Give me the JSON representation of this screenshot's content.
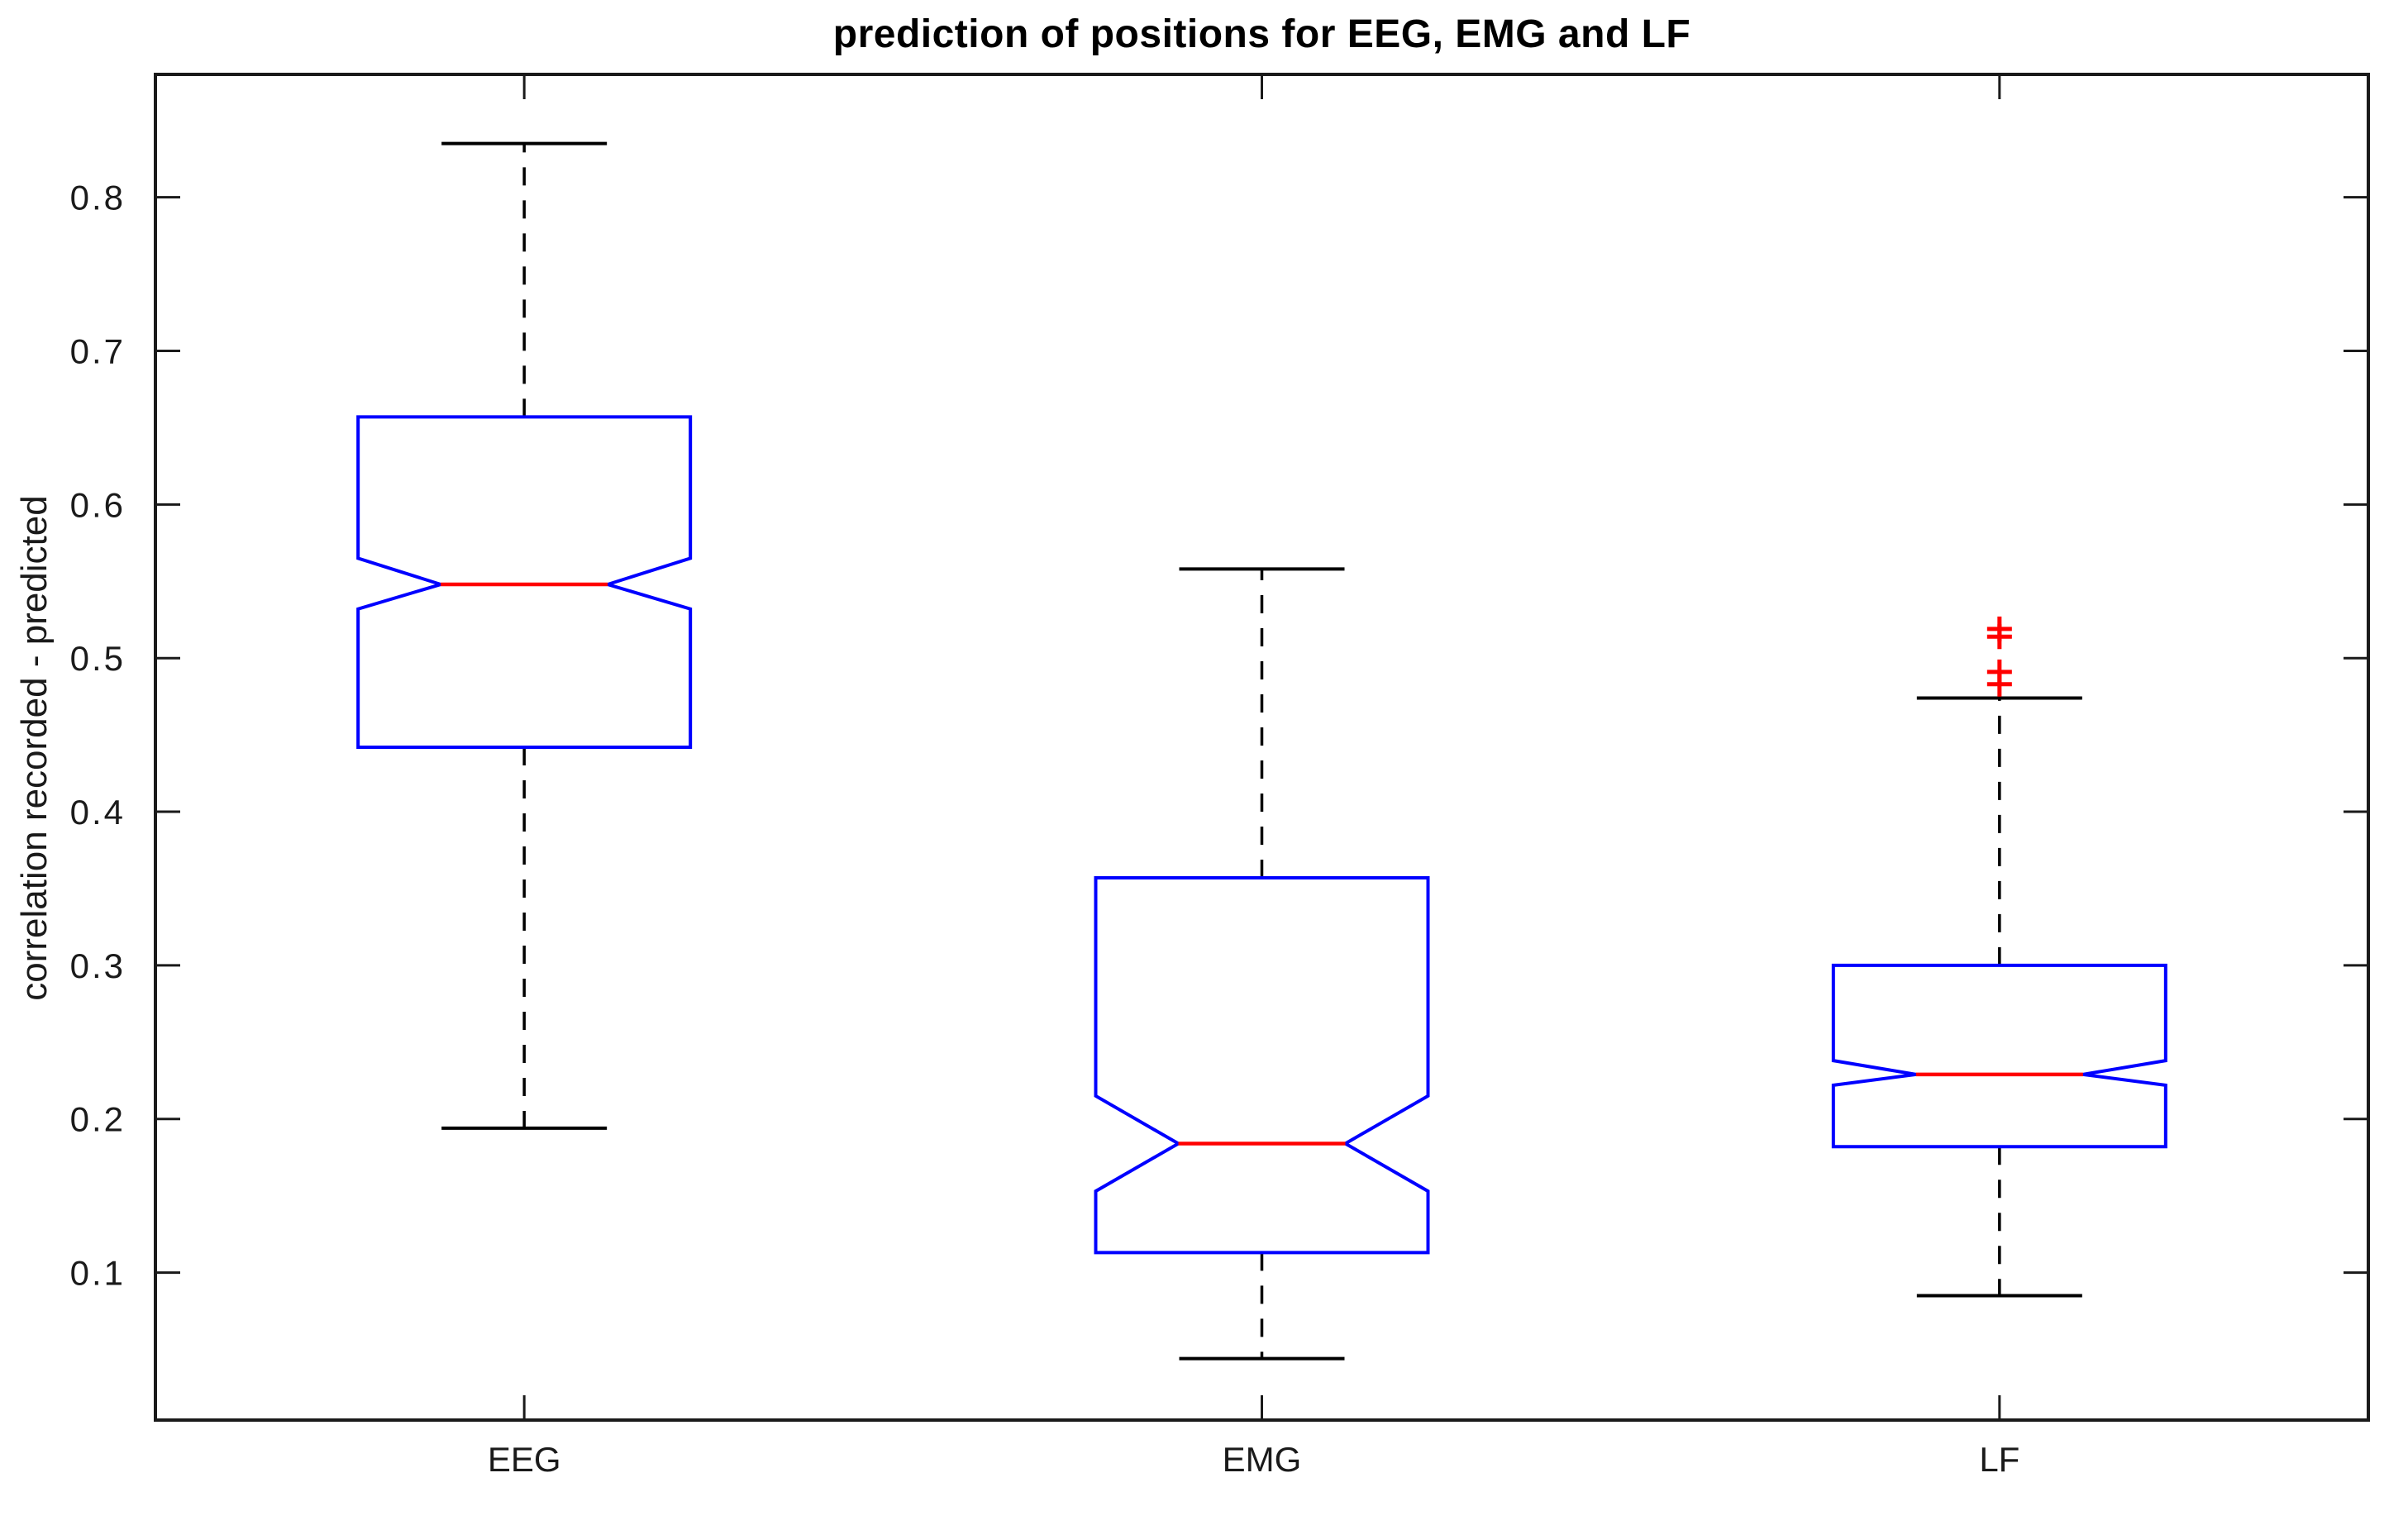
{
  "chart_data": {
    "type": "boxplot",
    "title": "prediction of positions for EEG, EMG and LF",
    "ylabel": "correlation recorded - predicted",
    "xlabel": "",
    "categories": [
      "EEG",
      "EMG",
      "LF"
    ],
    "y_ticks": [
      0.1,
      0.2,
      0.3,
      0.4,
      0.5,
      0.6,
      0.7,
      0.8
    ],
    "y_tick_labels": [
      "0.1",
      "0.2",
      "0.3",
      "0.4",
      "0.5",
      "0.6",
      "0.7",
      "0.8"
    ],
    "ylim": [
      0.004,
      0.88
    ],
    "grid": false,
    "legend": "none",
    "notched": true,
    "colors": {
      "box": "#0000ff",
      "median": "#ff0000",
      "whisker": "#000000",
      "cap": "#000000",
      "outlier": "#ff0000",
      "axis": "#1a1a1a",
      "background": "#ffffff"
    },
    "series": [
      {
        "name": "EEG",
        "whisker_low": 0.194,
        "q1": 0.442,
        "median": 0.548,
        "q3": 0.657,
        "whisker_high": 0.835,
        "notch_low": 0.532,
        "notch_high": 0.565,
        "outliers": []
      },
      {
        "name": "EMG",
        "whisker_low": 0.044,
        "q1": 0.113,
        "median": 0.184,
        "q3": 0.357,
        "whisker_high": 0.558,
        "notch_low": 0.153,
        "notch_high": 0.215,
        "outliers": []
      },
      {
        "name": "LF",
        "whisker_low": 0.085,
        "q1": 0.182,
        "median": 0.229,
        "q3": 0.3,
        "whisker_high": 0.474,
        "notch_low": 0.222,
        "notch_high": 0.238,
        "outliers": [
          0.519,
          0.514,
          0.491,
          0.483
        ]
      }
    ]
  }
}
